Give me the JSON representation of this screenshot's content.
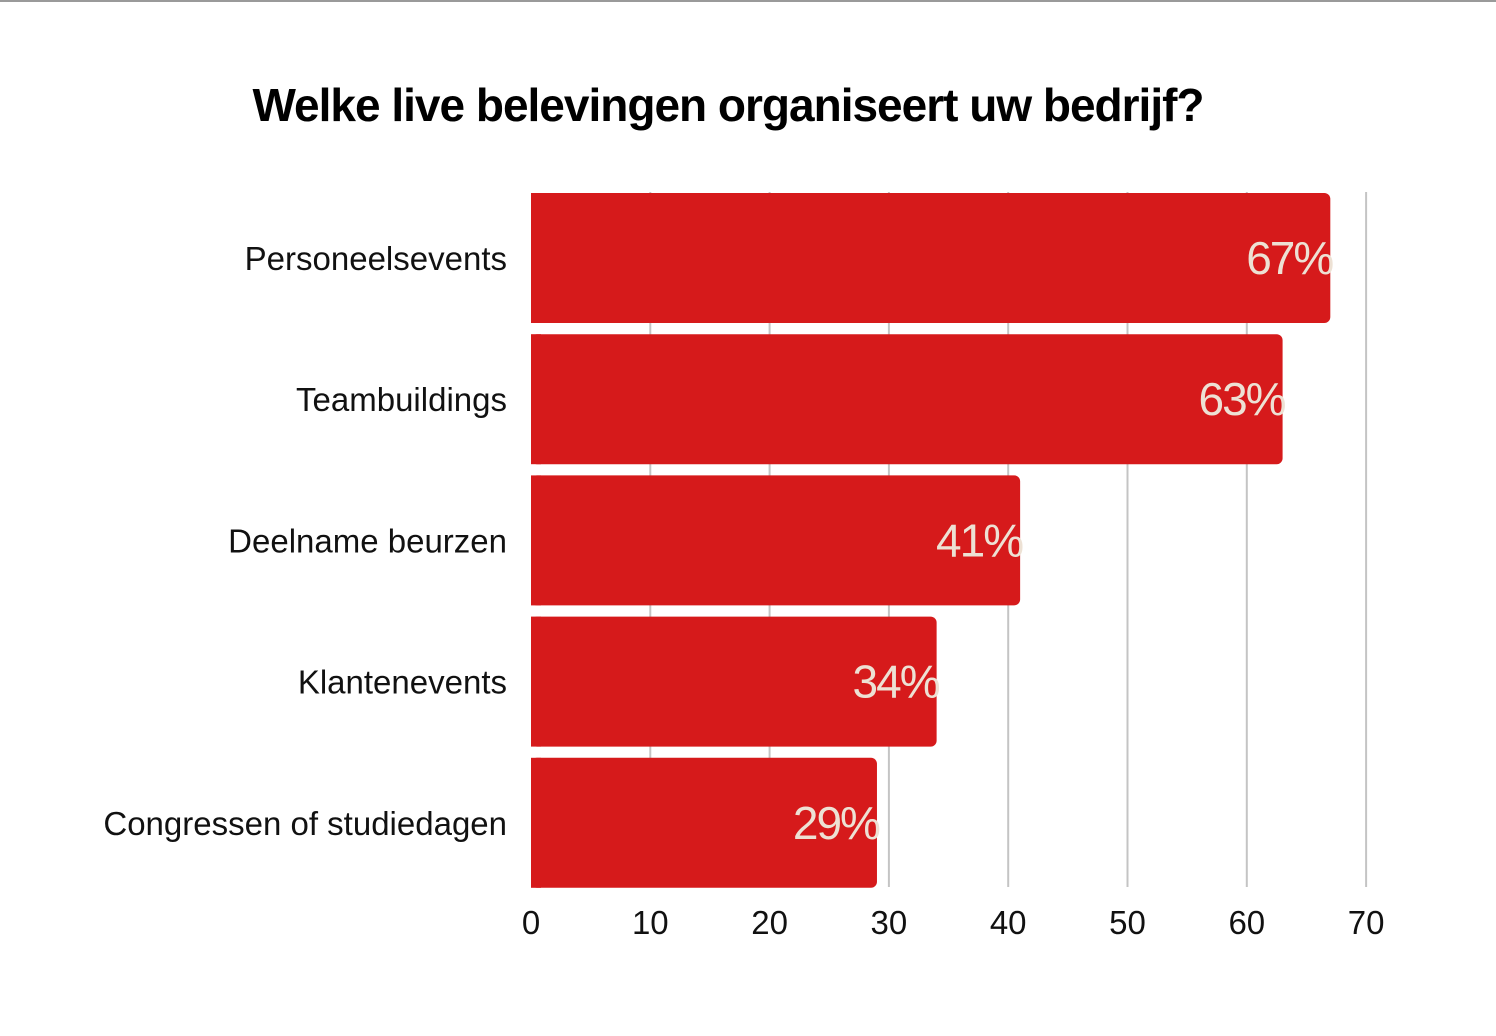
{
  "chart_data": {
    "type": "bar",
    "orientation": "horizontal",
    "title": "Welke live belevingen organiseert uw bedrijf?",
    "categories": [
      "Personeelsevents",
      "Teambuildings",
      "Deelname beurzen",
      "Klantenevents",
      "Congressen of studiedagen"
    ],
    "values": [
      67,
      63,
      41,
      34,
      29
    ],
    "data_labels": [
      "67%",
      "63%",
      "41%",
      "34%",
      "29%"
    ],
    "xlim": [
      0,
      70
    ],
    "x_ticks": [
      0,
      10,
      20,
      30,
      40,
      50,
      60,
      70
    ],
    "xlabel": "",
    "ylabel": "",
    "grid": "vertical",
    "legend": "none",
    "colors": {
      "bar": "#d61a1b",
      "data_label": "#ede1d4",
      "grid": "#c4c4c4",
      "text": "#111111"
    }
  }
}
